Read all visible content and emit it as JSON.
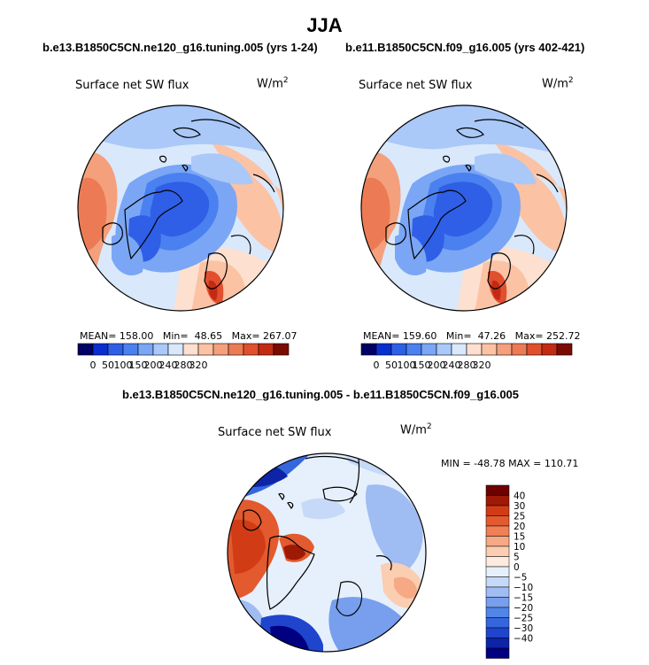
{
  "title": "JJA",
  "units_prefix": "W/m",
  "units_exp": "2",
  "colors": {
    "land_outline": "#000000",
    "abs_scale": [
      "#000066",
      "#0a2fd1",
      "#2f5fe6",
      "#4a80f0",
      "#7aa6f5",
      "#aac8f8",
      "#d9e8fb",
      "#fde0cf",
      "#fbc2a4",
      "#f4a07c",
      "#ec7b55",
      "#e0502f",
      "#c32a14",
      "#7a0b00"
    ],
    "diff_scale": [
      "#000080",
      "#0d24a8",
      "#1e45cc",
      "#3566dd",
      "#5285e8",
      "#789fee",
      "#9fbcf3",
      "#c7d9f8",
      "#e6f0fc",
      "#fdebe0",
      "#fbcdb1",
      "#f7a985",
      "#f08055",
      "#e35a2e",
      "#d13c17",
      "#9e1a06",
      "#6e0000"
    ]
  },
  "panels": [
    {
      "title": "b.e13.B1850C5CN.ne120_g16.tuning.005 (yrs 1-24)",
      "variable": "Surface net SW flux",
      "stats": {
        "mean": "158.00",
        "min": "48.65",
        "max": "267.07"
      },
      "stats_text": "MEAN= 158.00   Min=  48.65   Max= 267.07"
    },
    {
      "title": "b.e11.B1850C5CN.f09_g16.005 (yrs 402-421)",
      "variable": "Surface net SW flux",
      "stats": {
        "mean": "159.60",
        "min": "47.26",
        "max": "252.72"
      },
      "stats_text": "MEAN= 159.60   Min=  47.26   Max= 252.72"
    }
  ],
  "abs_ticks": [
    "0",
    "50",
    "100",
    "150",
    "200",
    "240",
    "280",
    "320"
  ],
  "diff_panel": {
    "title": "b.e13.B1850C5CN.ne120_g16.tuning.005 - b.e11.B1850C5CN.f09_g16.005",
    "variable": "Surface net SW flux",
    "stats": {
      "min": "-48.78",
      "max": "110.71"
    },
    "stats_text": "MIN = -48.78 MAX = 110.71",
    "ticks": [
      "40",
      "30",
      "25",
      "20",
      "15",
      "10",
      "5",
      "0",
      "−5",
      "−10",
      "−15",
      "−20",
      "−25",
      "−30",
      "−40"
    ]
  },
  "chart_data": [
    {
      "type": "heatmap",
      "projection": "north-polar-stereographic",
      "title": "b.e13.B1850C5CN.ne120_g16.tuning.005 (yrs 1-24)",
      "variable": "Surface net SW flux",
      "units": "W/m2",
      "season": "JJA",
      "colorbar_levels": [
        0,
        50,
        100,
        150,
        200,
        240,
        280,
        320
      ],
      "mean": 158.0,
      "min": 48.65,
      "max": 267.07
    },
    {
      "type": "heatmap",
      "projection": "north-polar-stereographic",
      "title": "b.e11.B1850C5CN.f09_g16.005 (yrs 402-421)",
      "variable": "Surface net SW flux",
      "units": "W/m2",
      "season": "JJA",
      "colorbar_levels": [
        0,
        50,
        100,
        150,
        200,
        240,
        280,
        320
      ],
      "mean": 159.6,
      "min": 47.26,
      "max": 252.72
    },
    {
      "type": "heatmap",
      "projection": "north-polar-stereographic",
      "title": "b.e13.B1850C5CN.ne120_g16.tuning.005 - b.e11.B1850C5CN.f09_g16.005",
      "variable": "Surface net SW flux",
      "units": "W/m2",
      "colorbar_levels": [
        -40,
        -30,
        -25,
        -20,
        -15,
        -10,
        -5,
        0,
        5,
        10,
        15,
        20,
        25,
        30,
        40
      ],
      "min": -48.78,
      "max": 110.71
    }
  ]
}
